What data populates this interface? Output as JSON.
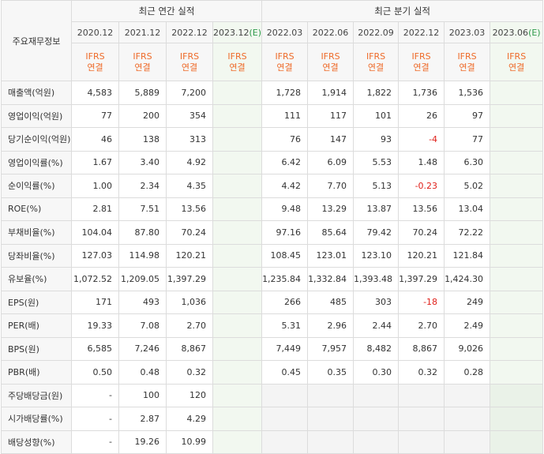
{
  "header": {
    "row_label": "주요재무정보",
    "annual_title": "최근 연간 실적",
    "quarter_title": "최근 분기 실적",
    "standard_line1": "IFRS",
    "standard_line2": "연결",
    "estimate_mark": "(E)",
    "annual_periods": [
      "2020.12",
      "2021.12",
      "2022.12",
      "2023.12"
    ],
    "quarter_periods": [
      "2022.03",
      "2022.06",
      "2022.09",
      "2022.12",
      "2023.03",
      "2023.06"
    ]
  },
  "rows": [
    {
      "label": "매출액(억원)",
      "annual": [
        "4,583",
        "5,889",
        "7,200",
        ""
      ],
      "quarter": [
        "1,728",
        "1,914",
        "1,822",
        "1,736",
        "1,536",
        ""
      ]
    },
    {
      "label": "영업이익(억원)",
      "annual": [
        "77",
        "200",
        "354",
        ""
      ],
      "quarter": [
        "111",
        "117",
        "101",
        "26",
        "97",
        ""
      ]
    },
    {
      "label": "당기순이익(억원)",
      "annual": [
        "46",
        "138",
        "313",
        ""
      ],
      "quarter": [
        "76",
        "147",
        "93",
        "-4",
        "77",
        ""
      ]
    },
    {
      "label": "영업이익률(%)",
      "annual": [
        "1.67",
        "3.40",
        "4.92",
        ""
      ],
      "quarter": [
        "6.42",
        "6.09",
        "5.53",
        "1.48",
        "6.30",
        ""
      ]
    },
    {
      "label": "순이익률(%)",
      "annual": [
        "1.00",
        "2.34",
        "4.35",
        ""
      ],
      "quarter": [
        "4.42",
        "7.70",
        "5.13",
        "-0.23",
        "5.02",
        ""
      ]
    },
    {
      "label": "ROE(%)",
      "annual": [
        "2.81",
        "7.51",
        "13.56",
        ""
      ],
      "quarter": [
        "9.48",
        "13.29",
        "13.87",
        "13.56",
        "13.04",
        ""
      ]
    },
    {
      "label": "부채비율(%)",
      "annual": [
        "104.04",
        "87.80",
        "70.24",
        ""
      ],
      "quarter": [
        "97.16",
        "85.64",
        "79.42",
        "70.24",
        "72.22",
        ""
      ]
    },
    {
      "label": "당좌비율(%)",
      "annual": [
        "127.03",
        "114.98",
        "120.21",
        ""
      ],
      "quarter": [
        "108.45",
        "123.01",
        "123.10",
        "120.21",
        "121.84",
        ""
      ]
    },
    {
      "label": "유보율(%)",
      "annual": [
        "1,072.52",
        "1,209.05",
        "1,397.29",
        ""
      ],
      "quarter": [
        "1,235.84",
        "1,332.84",
        "1,393.48",
        "1,397.29",
        "1,424.30",
        ""
      ]
    },
    {
      "label": "EPS(원)",
      "annual": [
        "171",
        "493",
        "1,036",
        ""
      ],
      "quarter": [
        "266",
        "485",
        "303",
        "-18",
        "249",
        ""
      ]
    },
    {
      "label": "PER(배)",
      "annual": [
        "19.33",
        "7.08",
        "2.70",
        ""
      ],
      "quarter": [
        "5.31",
        "2.96",
        "2.44",
        "2.70",
        "2.49",
        ""
      ]
    },
    {
      "label": "BPS(원)",
      "annual": [
        "6,585",
        "7,246",
        "8,867",
        ""
      ],
      "quarter": [
        "7,449",
        "7,957",
        "8,482",
        "8,867",
        "9,026",
        ""
      ]
    },
    {
      "label": "PBR(배)",
      "annual": [
        "0.50",
        "0.48",
        "0.32",
        ""
      ],
      "quarter": [
        "0.45",
        "0.35",
        "0.30",
        "0.32",
        "0.28",
        ""
      ]
    },
    {
      "label": "주당배당금(원)",
      "annual": [
        "-",
        "100",
        "120",
        ""
      ],
      "quarter": null
    },
    {
      "label": "시가배당률(%)",
      "annual": [
        "-",
        "2.87",
        "4.29",
        ""
      ],
      "quarter": null
    },
    {
      "label": "배당성향(%)",
      "annual": [
        "-",
        "19.26",
        "10.99",
        ""
      ],
      "quarter": null
    }
  ],
  "colors": {
    "negative": "#e0201a",
    "standard": "#ee6b2a",
    "estimate_bg": "#f2f8f0",
    "estimate_mark": "#2e9a4a"
  }
}
